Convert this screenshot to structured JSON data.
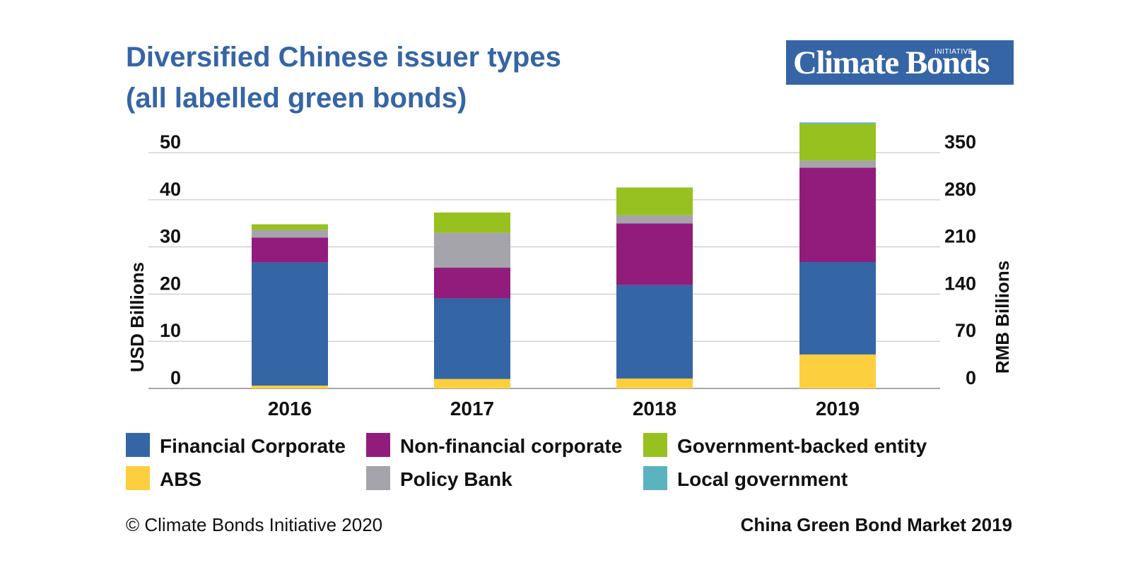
{
  "title": {
    "line1": "Diversified Chinese issuer types",
    "line2": "(all labelled green bonds)"
  },
  "logo": {
    "main_text": "Climate Bonds",
    "small_text": "INITIATIVE"
  },
  "chart_data": {
    "type": "bar",
    "stacked": true,
    "categories": [
      "2016",
      "2017",
      "2018",
      "2019"
    ],
    "series": [
      {
        "name": "ABS",
        "color": "#fccf3f",
        "values": [
          0.6,
          2.0,
          2.1,
          7.2
        ]
      },
      {
        "name": "Financial Corporate",
        "color": "#3466a6",
        "values": [
          26.1,
          17.1,
          19.8,
          19.6
        ]
      },
      {
        "name": "Non-financial corporate",
        "color": "#921c7c",
        "values": [
          5.3,
          6.5,
          13.1,
          20.0
        ]
      },
      {
        "name": "Policy Bank",
        "color": "#a5a4ab",
        "values": [
          1.6,
          7.4,
          1.7,
          1.5
        ]
      },
      {
        "name": "Government-backed entity",
        "color": "#97c11f",
        "values": [
          1.2,
          4.3,
          5.9,
          7.8
        ]
      },
      {
        "name": "Local government",
        "color": "#5bb3c0",
        "values": [
          0,
          0,
          0,
          0.3
        ]
      }
    ],
    "ylabel": "USD Billions",
    "y2label": "RMB Billions",
    "ylim": [
      0,
      56
    ],
    "yticks": [
      0,
      10,
      20,
      30,
      40,
      50
    ],
    "y2ticks": [
      "0",
      "70",
      "140",
      "210",
      "280",
      "350"
    ],
    "grid": true,
    "legend_position": "bottom"
  },
  "legend": [
    {
      "label": "Financial Corporate",
      "color": "#3466a6"
    },
    {
      "label": "ABS",
      "color": "#fccf3f"
    },
    {
      "label": "Non-financial corporate",
      "color": "#921c7c"
    },
    {
      "label": "Policy Bank",
      "color": "#a5a4ab"
    },
    {
      "label": "Government-backed entity",
      "color": "#97c11f"
    },
    {
      "label": "Local government",
      "color": "#5bb3c0"
    }
  ],
  "footer": {
    "copyright": "© Climate Bonds Initiative 2020",
    "source": "China Green Bond Market 2019"
  }
}
